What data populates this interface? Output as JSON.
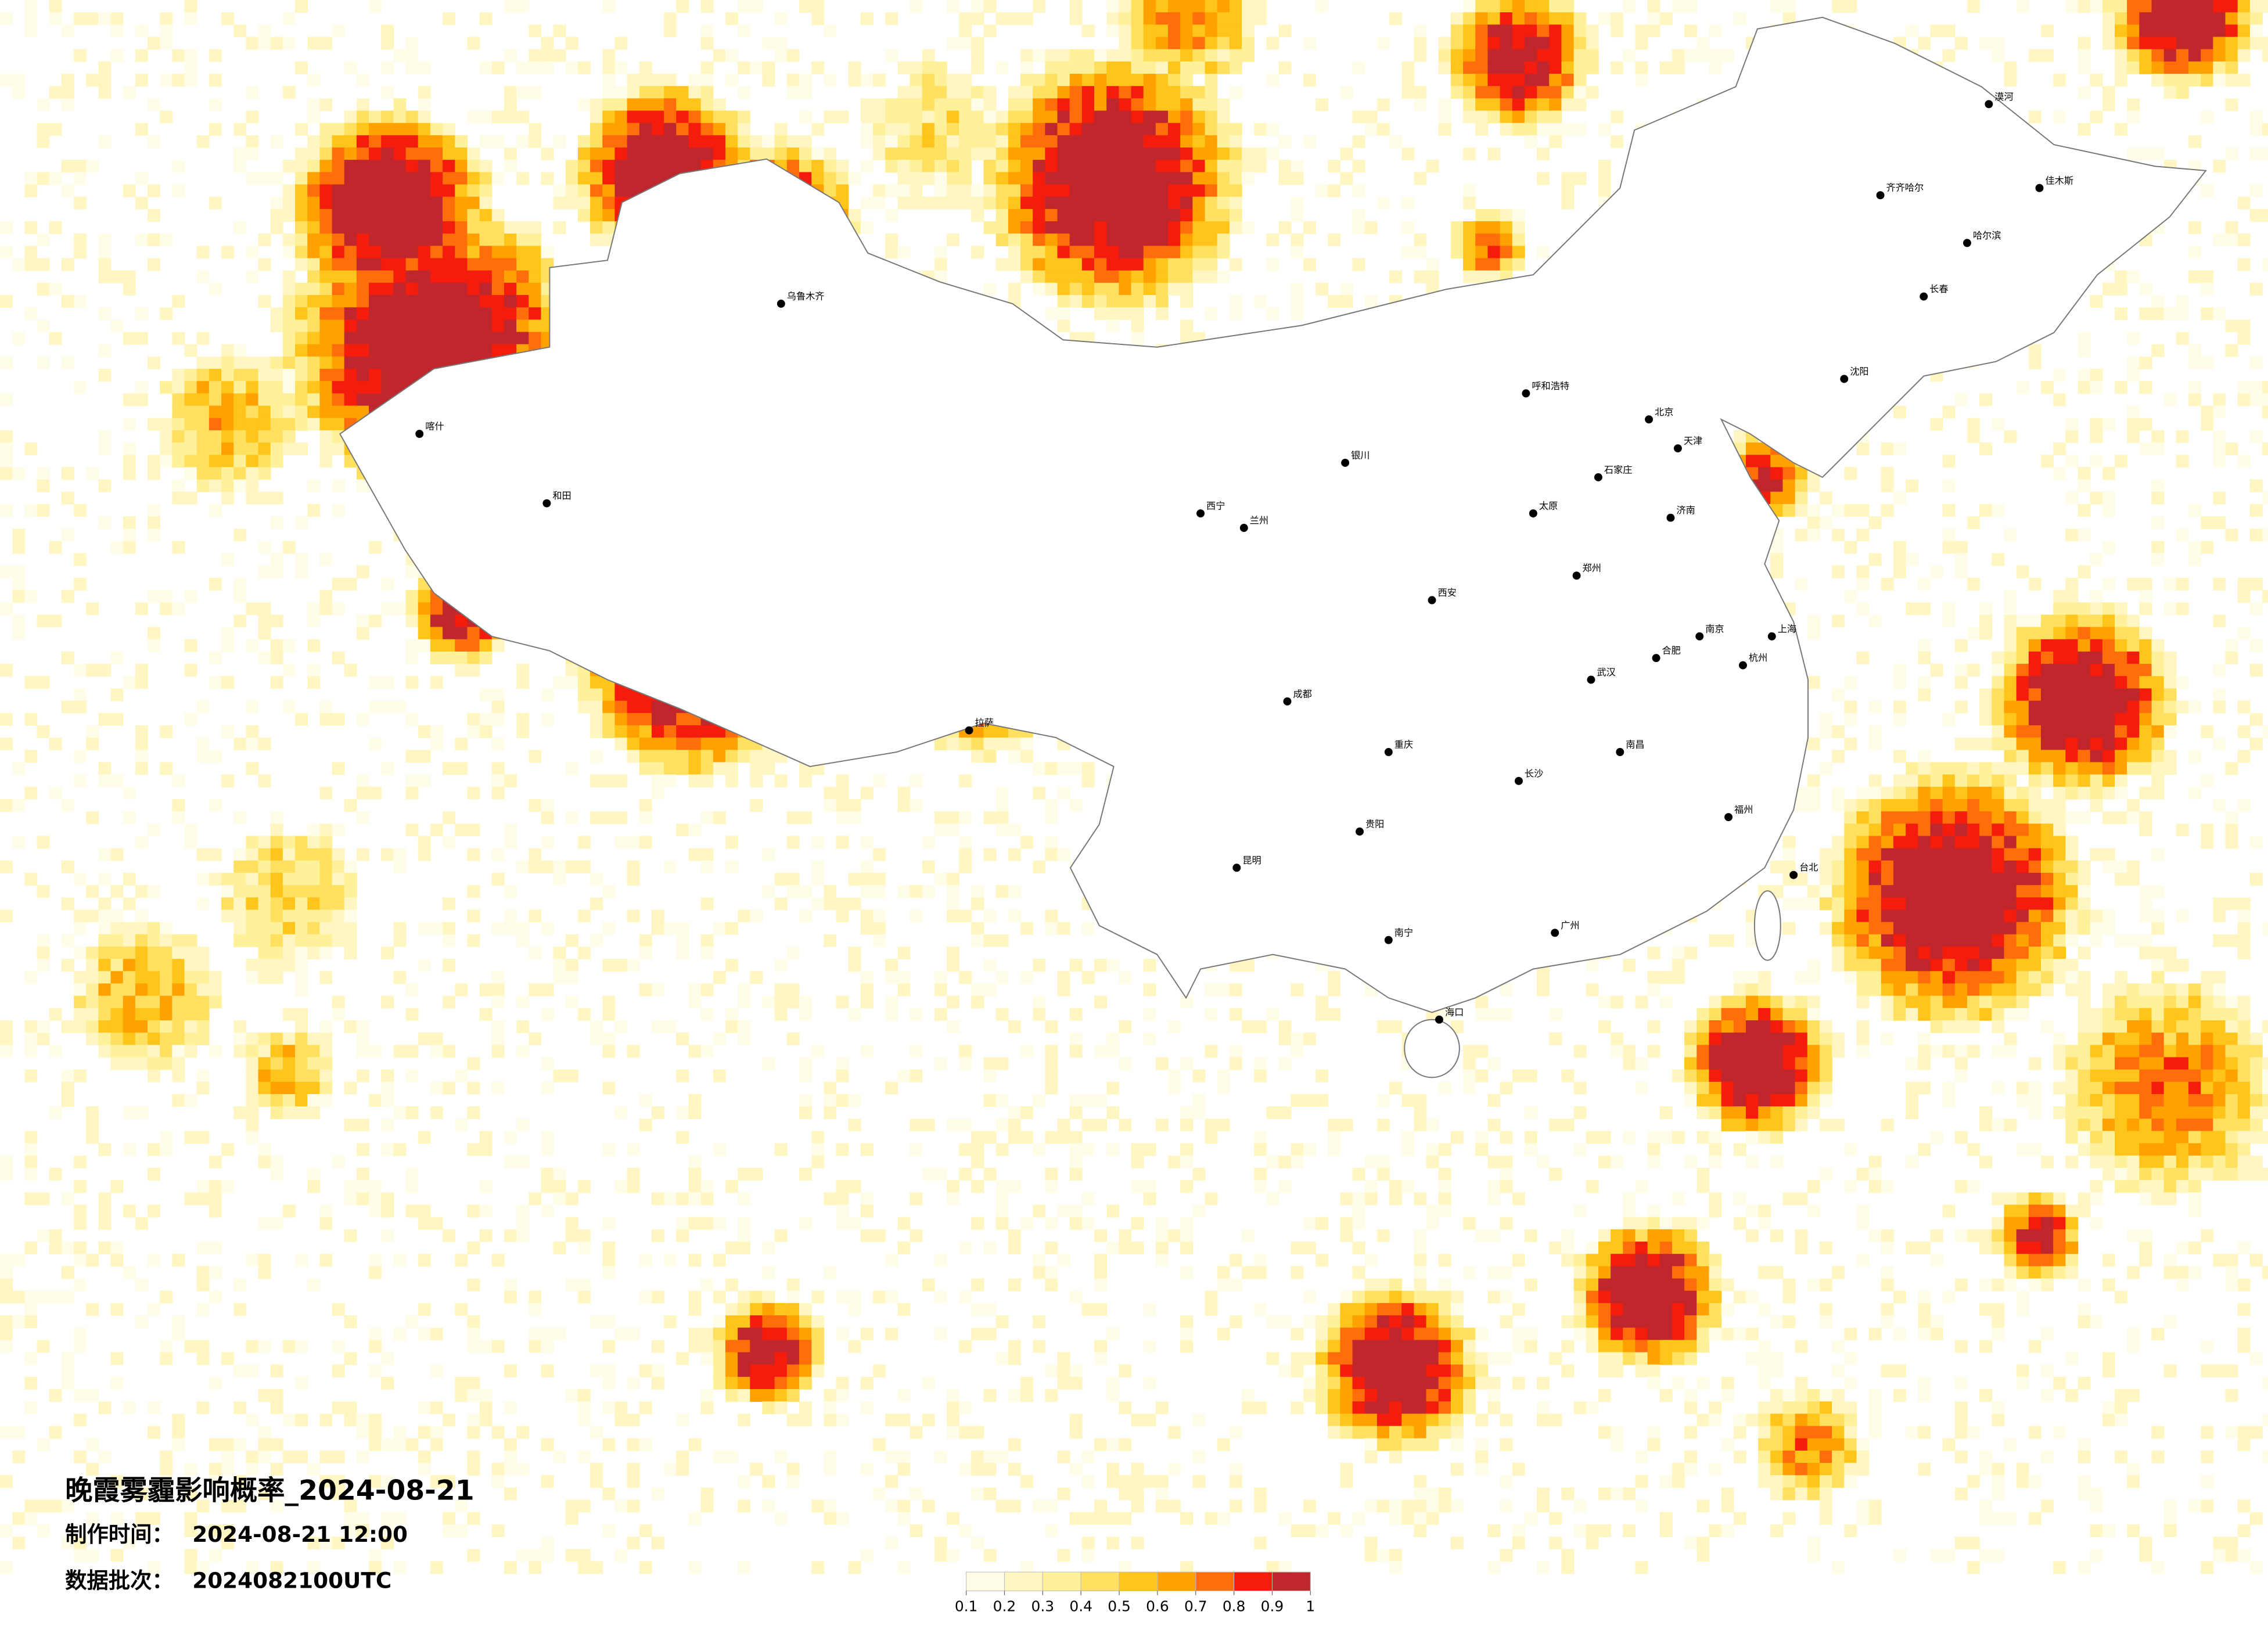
{
  "title": "晚霞雾霾影响概率_2024-08-21",
  "meta": [
    {
      "label": "制作时间：",
      "value": "2024-08-21 12:00"
    },
    {
      "label": "数据批次：",
      "value": "2024082100UTC"
    }
  ],
  "legend": {
    "colors": [
      "#fffce8",
      "#fff6c2",
      "#fff09a",
      "#ffe060",
      "#ffc51a",
      "#ffa200",
      "#ff6e0a",
      "#f41c0c",
      "#c0272d"
    ],
    "ticks": [
      0.1,
      0.2,
      0.3,
      0.4,
      0.5,
      0.6,
      0.7,
      0.8,
      0.9,
      1
    ]
  },
  "cities": [
    "北京",
    "天津",
    "石家庄",
    "太原",
    "呼和浩特",
    "沈阳",
    "长春",
    "哈尔滨",
    "济南",
    "郑州",
    "西安",
    "兰州",
    "西宁",
    "银川",
    "乌鲁木齐",
    "拉萨",
    "成都",
    "重庆",
    "贵阳",
    "昆明",
    "南宁",
    "广州",
    "长沙",
    "武汉",
    "南昌",
    "杭州",
    "上海",
    "南京",
    "合肥",
    "福州",
    "台北",
    "海口",
    "和田",
    "喀什",
    "齐齐哈尔",
    "漠河",
    "佳木斯"
  ]
}
